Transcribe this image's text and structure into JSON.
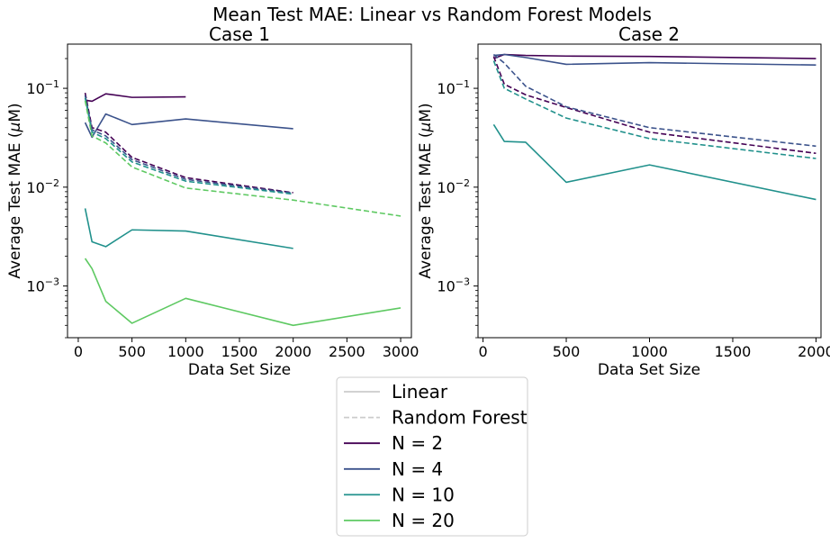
{
  "suptitle": "Mean Test MAE: Linear vs Random Forest Models",
  "legend": {
    "placement": "bottom-center, below plots",
    "style_entries": [
      {
        "label": "Linear",
        "dash": "solid",
        "color": "#cccccc"
      },
      {
        "label": "Random Forest",
        "dash": "dashed",
        "color": "#cccccc"
      }
    ],
    "color_entries": [
      {
        "label": "N = 2",
        "color": "#440154"
      },
      {
        "label": "N = 4",
        "color": "#3b528b"
      },
      {
        "label": "N = 10",
        "color": "#21918c"
      },
      {
        "label": "N = 20",
        "color": "#5ec962"
      }
    ]
  },
  "chart_data": [
    {
      "type": "line",
      "title": "Case 1",
      "xlabel": "Data Set Size",
      "ylabel": "Average Test MAE ($\\mu$M)",
      "ylabel_parts": [
        "Average Test MAE (",
        "μ",
        "M)"
      ],
      "yscale": "log",
      "xlim": [
        -100,
        3100
      ],
      "ylim": [
        0.0003,
        0.28
      ],
      "xticks": [
        0,
        500,
        1000,
        1500,
        2000,
        2500,
        3000
      ],
      "yticks": [
        {
          "value": 0.001,
          "exp": "−3"
        },
        {
          "value": 0.01,
          "exp": "−2"
        },
        {
          "value": 0.1,
          "exp": "−1"
        }
      ],
      "grid": false,
      "series": [
        {
          "legend": "N = 2",
          "model": "Linear",
          "color": "#440154",
          "x": [
            64,
            128,
            256,
            500,
            1000
          ],
          "y": [
            0.076,
            0.074,
            0.088,
            0.081,
            0.082
          ]
        },
        {
          "legend": "N = 4",
          "model": "Linear",
          "color": "#3b528b",
          "x": [
            64,
            128,
            256,
            500,
            1000,
            2000
          ],
          "y": [
            0.045,
            0.032,
            0.055,
            0.043,
            0.049,
            0.039
          ]
        },
        {
          "legend": "N = 10",
          "model": "Linear",
          "color": "#21918c",
          "x": [
            64,
            128,
            256,
            500,
            1000,
            2000
          ],
          "y": [
            0.0061,
            0.0028,
            0.0025,
            0.0037,
            0.0036,
            0.0024
          ]
        },
        {
          "legend": "N = 20",
          "model": "Linear",
          "color": "#5ec962",
          "x": [
            64,
            128,
            256,
            500,
            1000,
            2000,
            3000
          ],
          "y": [
            0.0019,
            0.0015,
            0.0007,
            0.00042,
            0.00075,
            0.0004,
            0.0006
          ]
        },
        {
          "legend": "N = 2",
          "model": "Random Forest",
          "color": "#440154",
          "x": [
            64,
            128,
            256,
            500,
            1000,
            2000
          ],
          "y": [
            0.09,
            0.04,
            0.036,
            0.02,
            0.0125,
            0.0088
          ]
        },
        {
          "legend": "N = 4",
          "model": "Random Forest",
          "color": "#3b528b",
          "x": [
            64,
            128,
            256,
            500,
            1000,
            2000
          ],
          "y": [
            0.085,
            0.038,
            0.033,
            0.019,
            0.012,
            0.0087
          ]
        },
        {
          "legend": "N = 10",
          "model": "Random Forest",
          "color": "#21918c",
          "x": [
            64,
            128,
            256,
            500,
            1000,
            2000
          ],
          "y": [
            0.08,
            0.036,
            0.031,
            0.018,
            0.0115,
            0.0085
          ]
        },
        {
          "legend": "N = 20",
          "model": "Random Forest",
          "color": "#5ec962",
          "x": [
            64,
            128,
            256,
            500,
            1000,
            2000,
            3000
          ],
          "y": [
            0.075,
            0.033,
            0.028,
            0.016,
            0.0098,
            0.0074,
            0.0051
          ]
        }
      ]
    },
    {
      "type": "line",
      "title": "Case 2",
      "xlabel": "Data Set Size",
      "ylabel": "Average Test MAE ($\\mu$M)",
      "ylabel_parts": [
        "Average Test MAE (",
        "μ",
        "M)"
      ],
      "yscale": "log",
      "xlim": [
        -30,
        2030
      ],
      "ylim": [
        0.0003,
        0.28
      ],
      "xticks": [
        0,
        500,
        1000,
        1500,
        2000
      ],
      "yticks": [
        {
          "value": 0.001,
          "exp": "−3"
        },
        {
          "value": 0.01,
          "exp": "−2"
        },
        {
          "value": 0.1,
          "exp": "−1"
        }
      ],
      "grid": false,
      "series": [
        {
          "legend": "N = 2",
          "model": "Linear",
          "color": "#440154",
          "x": [
            64,
            128,
            256,
            500,
            1000,
            2000
          ],
          "y": [
            0.2,
            0.22,
            0.215,
            0.212,
            0.21,
            0.2
          ]
        },
        {
          "legend": "N = 4",
          "model": "Linear",
          "color": "#3b528b",
          "x": [
            64,
            128,
            256,
            500,
            1000,
            2000
          ],
          "y": [
            0.215,
            0.22,
            0.205,
            0.175,
            0.182,
            0.172
          ]
        },
        {
          "legend": "N = 10",
          "model": "Linear",
          "color": "#21918c",
          "x": [
            64,
            128,
            256,
            500,
            1000,
            2000
          ],
          "y": [
            0.043,
            0.029,
            0.0285,
            0.0112,
            0.0168,
            0.0075
          ]
        },
        {
          "legend": "N = 2",
          "model": "Random Forest",
          "color": "#440154",
          "x": [
            64,
            128,
            256,
            500,
            1000,
            2000
          ],
          "y": [
            0.21,
            0.11,
            0.086,
            0.064,
            0.036,
            0.022
          ]
        },
        {
          "legend": "N = 4",
          "model": "Random Forest",
          "color": "#3b528b",
          "x": [
            64,
            128,
            256,
            500,
            1000,
            2000
          ],
          "y": [
            0.22,
            0.18,
            0.105,
            0.065,
            0.04,
            0.026
          ]
        },
        {
          "legend": "N = 10",
          "model": "Random Forest",
          "color": "#21918c",
          "x": [
            64,
            128,
            256,
            500,
            1000,
            2000
          ],
          "y": [
            0.19,
            0.1,
            0.078,
            0.05,
            0.031,
            0.0195
          ]
        }
      ]
    }
  ]
}
